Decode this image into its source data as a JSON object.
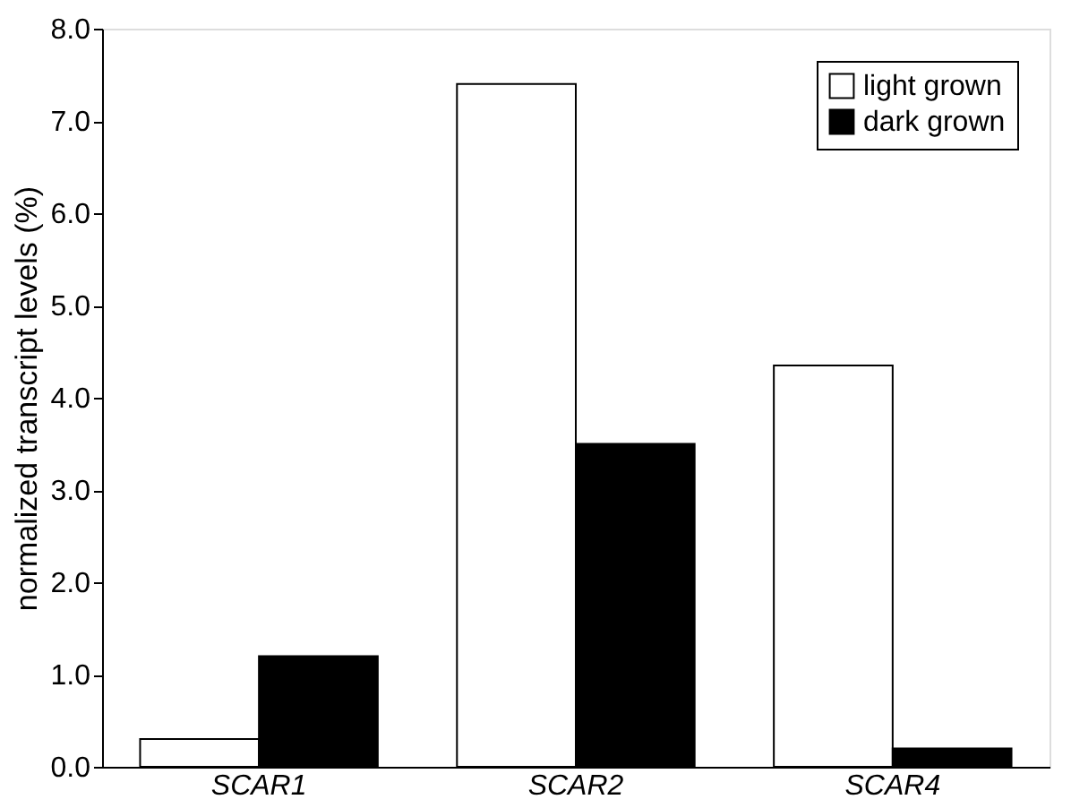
{
  "chart_data": {
    "type": "bar",
    "ylabel": "normalized transcript levels (%)",
    "categories": [
      "SCAR1",
      "SCAR2",
      "SCAR4"
    ],
    "series": [
      {
        "name": "light grown",
        "color": "#ffffff",
        "values": [
          0.3,
          7.4,
          4.35
        ]
      },
      {
        "name": "dark grown",
        "color": "#000000",
        "values": [
          1.2,
          3.5,
          0.2
        ]
      }
    ],
    "ylim": [
      0,
      8
    ],
    "yticks": [
      {
        "value": 0,
        "label": "0.0"
      },
      {
        "value": 1,
        "label": "1.0"
      },
      {
        "value": 2,
        "label": "2.0"
      },
      {
        "value": 3,
        "label": "3.0"
      },
      {
        "value": 4,
        "label": "4.0"
      },
      {
        "value": 5,
        "label": "5.0"
      },
      {
        "value": 6,
        "label": "6.0"
      },
      {
        "value": 7,
        "label": "7.0"
      },
      {
        "value": 8,
        "label": "8.0"
      }
    ],
    "grid": false,
    "legend": "top right"
  }
}
